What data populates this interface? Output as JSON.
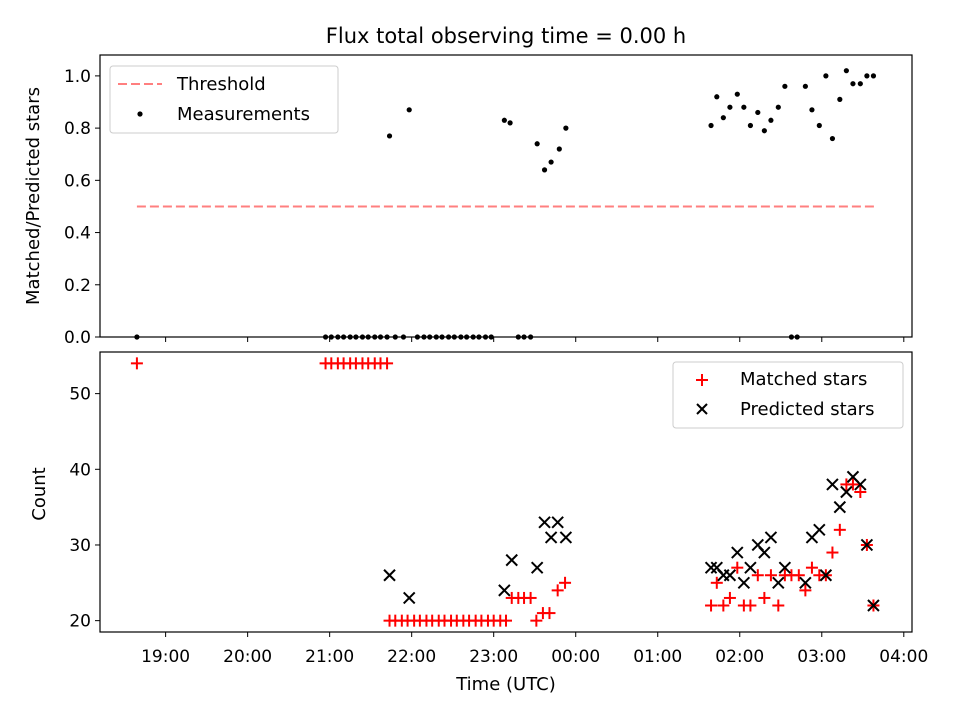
{
  "chart_data": {
    "title": "Flux total observing time = 0.00 h",
    "xlabel": "Time (UTC)",
    "x_ticks": [
      "19:00",
      "20:00",
      "21:00",
      "22:00",
      "23:00",
      "00:00",
      "01:00",
      "02:00",
      "03:00",
      "04:00"
    ],
    "x_range_hours": [
      18.2,
      28.1
    ],
    "panels": [
      {
        "type": "scatter",
        "ylabel": "Matched/Predicted stars",
        "ylim": [
          0.0,
          1.08
        ],
        "y_ticks": [
          "0.0",
          "0.2",
          "0.4",
          "0.6",
          "0.8",
          "1.0"
        ],
        "legend_position": "upper-left",
        "threshold": {
          "name": "Threshold",
          "value": 0.5,
          "x_range": [
            18.65,
            27.65
          ],
          "color": "#ff7f7f"
        },
        "measurements": {
          "name": "Measurements",
          "color": "#000000",
          "points": [
            [
              18.65,
              0.0
            ],
            [
              20.95,
              0.0
            ],
            [
              21.02,
              0.0
            ],
            [
              21.1,
              0.0
            ],
            [
              21.17,
              0.0
            ],
            [
              21.25,
              0.0
            ],
            [
              21.32,
              0.0
            ],
            [
              21.4,
              0.0
            ],
            [
              21.47,
              0.0
            ],
            [
              21.55,
              0.0
            ],
            [
              21.62,
              0.0
            ],
            [
              21.7,
              0.0
            ],
            [
              21.73,
              0.77
            ],
            [
              21.8,
              0.0
            ],
            [
              21.9,
              0.0
            ],
            [
              21.97,
              0.87
            ],
            [
              22.07,
              0.0
            ],
            [
              22.15,
              0.0
            ],
            [
              22.22,
              0.0
            ],
            [
              22.3,
              0.0
            ],
            [
              22.37,
              0.0
            ],
            [
              22.45,
              0.0
            ],
            [
              22.52,
              0.0
            ],
            [
              22.6,
              0.0
            ],
            [
              22.67,
              0.0
            ],
            [
              22.75,
              0.0
            ],
            [
              22.82,
              0.0
            ],
            [
              22.9,
              0.0
            ],
            [
              22.97,
              0.0
            ],
            [
              23.13,
              0.83
            ],
            [
              23.2,
              0.82
            ],
            [
              23.3,
              0.0
            ],
            [
              23.37,
              0.0
            ],
            [
              23.45,
              0.0
            ],
            [
              23.53,
              0.74
            ],
            [
              23.62,
              0.64
            ],
            [
              23.7,
              0.67
            ],
            [
              23.8,
              0.72
            ],
            [
              23.88,
              0.8
            ],
            [
              25.65,
              0.81
            ],
            [
              25.72,
              0.92
            ],
            [
              25.8,
              0.84
            ],
            [
              25.88,
              0.88
            ],
            [
              25.97,
              0.93
            ],
            [
              26.05,
              0.88
            ],
            [
              26.13,
              0.81
            ],
            [
              26.22,
              0.86
            ],
            [
              26.3,
              0.79
            ],
            [
              26.38,
              0.83
            ],
            [
              26.47,
              0.88
            ],
            [
              26.55,
              0.96
            ],
            [
              26.63,
              0.0
            ],
            [
              26.7,
              0.0
            ],
            [
              26.8,
              0.96
            ],
            [
              26.88,
              0.87
            ],
            [
              26.97,
              0.81
            ],
            [
              27.05,
              1.0
            ],
            [
              27.13,
              0.76
            ],
            [
              27.22,
              0.91
            ],
            [
              27.3,
              1.02
            ],
            [
              27.38,
              0.97
            ],
            [
              27.47,
              0.97
            ],
            [
              27.55,
              1.0
            ],
            [
              27.63,
              1.0
            ]
          ]
        }
      },
      {
        "type": "scatter",
        "ylabel": "Count",
        "ylim": [
          18.5,
          55.5
        ],
        "y_ticks": [
          "20",
          "30",
          "40",
          "50"
        ],
        "legend_position": "upper-right",
        "series": [
          {
            "name": "Matched stars",
            "marker": "plus",
            "color": "#ff0000",
            "points": [
              [
                18.65,
                54
              ],
              [
                20.95,
                54
              ],
              [
                21.02,
                54
              ],
              [
                21.1,
                54
              ],
              [
                21.17,
                54
              ],
              [
                21.25,
                54
              ],
              [
                21.32,
                54
              ],
              [
                21.4,
                54
              ],
              [
                21.47,
                54
              ],
              [
                21.55,
                54
              ],
              [
                21.62,
                54
              ],
              [
                21.7,
                54
              ],
              [
                21.73,
                20
              ],
              [
                21.8,
                20
              ],
              [
                21.88,
                20
              ],
              [
                21.95,
                20
              ],
              [
                22.03,
                20
              ],
              [
                22.1,
                20
              ],
              [
                22.18,
                20
              ],
              [
                22.25,
                20
              ],
              [
                22.33,
                20
              ],
              [
                22.4,
                20
              ],
              [
                22.48,
                20
              ],
              [
                22.55,
                20
              ],
              [
                22.63,
                20
              ],
              [
                22.7,
                20
              ],
              [
                22.78,
                20
              ],
              [
                22.85,
                20
              ],
              [
                22.93,
                20
              ],
              [
                23.0,
                20
              ],
              [
                23.08,
                20
              ],
              [
                23.15,
                20
              ],
              [
                23.22,
                23
              ],
              [
                23.3,
                23
              ],
              [
                23.37,
                23
              ],
              [
                23.45,
                23
              ],
              [
                23.52,
                20
              ],
              [
                23.6,
                21
              ],
              [
                23.68,
                21
              ],
              [
                23.78,
                24
              ],
              [
                23.87,
                25
              ],
              [
                25.65,
                22
              ],
              [
                25.72,
                25
              ],
              [
                25.8,
                22
              ],
              [
                25.88,
                23
              ],
              [
                25.97,
                27
              ],
              [
                26.05,
                22
              ],
              [
                26.13,
                22
              ],
              [
                26.22,
                26
              ],
              [
                26.3,
                23
              ],
              [
                26.38,
                26
              ],
              [
                26.47,
                22
              ],
              [
                26.55,
                26
              ],
              [
                26.63,
                26
              ],
              [
                26.72,
                26
              ],
              [
                26.8,
                24
              ],
              [
                26.88,
                27
              ],
              [
                26.97,
                26
              ],
              [
                27.05,
                26
              ],
              [
                27.13,
                29
              ],
              [
                27.22,
                32
              ],
              [
                27.3,
                38
              ],
              [
                27.38,
                38
              ],
              [
                27.47,
                37
              ],
              [
                27.55,
                30
              ],
              [
                27.63,
                22
              ]
            ]
          },
          {
            "name": "Predicted stars",
            "marker": "x",
            "color": "#000000",
            "points": [
              [
                21.73,
                26
              ],
              [
                21.97,
                23
              ],
              [
                23.13,
                24
              ],
              [
                23.22,
                28
              ],
              [
                23.53,
                27
              ],
              [
                23.62,
                33
              ],
              [
                23.7,
                31
              ],
              [
                23.78,
                33
              ],
              [
                23.88,
                31
              ],
              [
                25.65,
                27
              ],
              [
                25.72,
                27
              ],
              [
                25.8,
                26
              ],
              [
                25.88,
                26
              ],
              [
                25.97,
                29
              ],
              [
                26.05,
                25
              ],
              [
                26.13,
                27
              ],
              [
                26.22,
                30
              ],
              [
                26.3,
                29
              ],
              [
                26.38,
                31
              ],
              [
                26.47,
                25
              ],
              [
                26.55,
                27
              ],
              [
                26.8,
                25
              ],
              [
                26.88,
                31
              ],
              [
                26.97,
                32
              ],
              [
                27.05,
                26
              ],
              [
                27.13,
                38
              ],
              [
                27.22,
                35
              ],
              [
                27.3,
                37
              ],
              [
                27.38,
                39
              ],
              [
                27.47,
                38
              ],
              [
                27.55,
                30
              ],
              [
                27.63,
                22
              ]
            ]
          }
        ]
      }
    ]
  }
}
